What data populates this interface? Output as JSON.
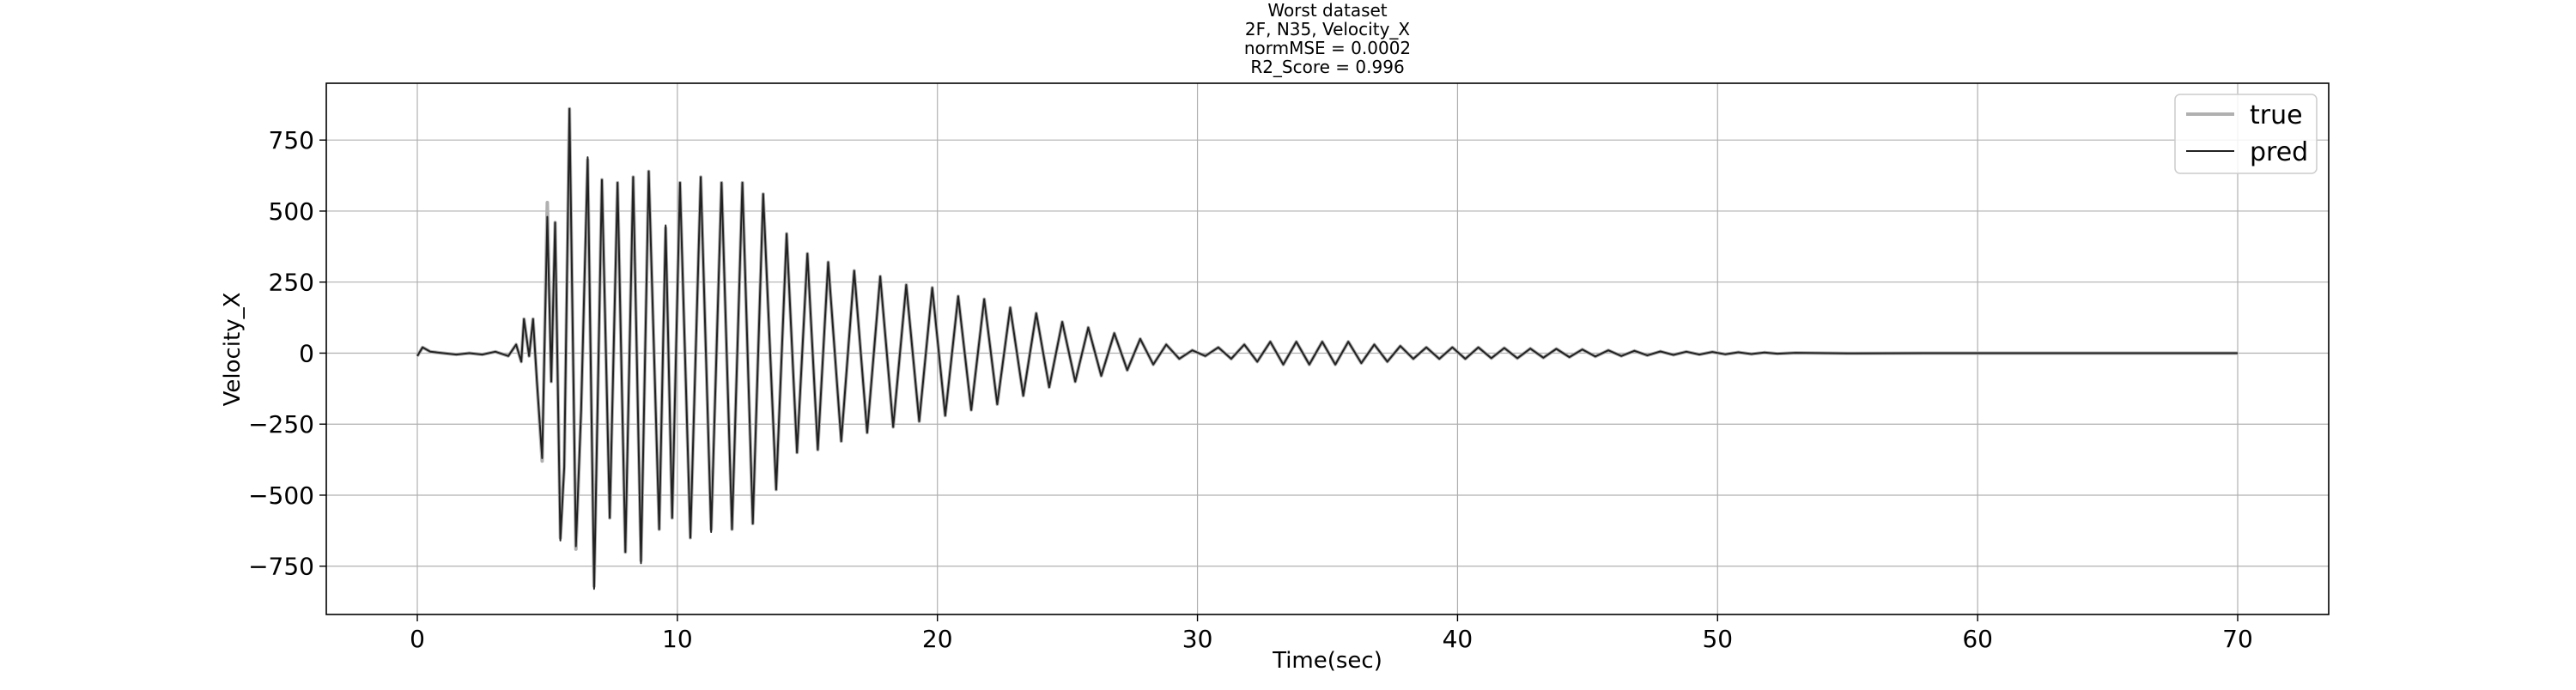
{
  "chart_data": {
    "type": "line",
    "title_lines": [
      "Worst dataset",
      "2F, N35, Velocity_X",
      "normMSE = 0.0002",
      "R2_Score = 0.996"
    ],
    "xlabel": "Time(sec)",
    "ylabel": "Velocity_X",
    "xlim": [
      -3.5,
      73.5
    ],
    "ylim": [
      -920,
      950
    ],
    "xticks": [
      0,
      10,
      20,
      30,
      40,
      50,
      60,
      70
    ],
    "yticks": [
      -750,
      -500,
      -250,
      0,
      250,
      500,
      750
    ],
    "grid": true,
    "legend_position": "top-right",
    "series": [
      {
        "name": "true",
        "color": "#b0b0b0",
        "points": [
          [
            0,
            -10
          ],
          [
            0.2,
            20
          ],
          [
            0.5,
            5
          ],
          [
            1,
            0
          ],
          [
            1.5,
            -5
          ],
          [
            2,
            0
          ],
          [
            2.5,
            -5
          ],
          [
            3,
            5
          ],
          [
            3.5,
            -10
          ],
          [
            3.8,
            30
          ],
          [
            4.0,
            -30
          ],
          [
            4.1,
            120
          ],
          [
            4.3,
            -10
          ],
          [
            4.45,
            120
          ],
          [
            4.6,
            -100
          ],
          [
            4.8,
            -380
          ],
          [
            5.0,
            530
          ],
          [
            5.15,
            -100
          ],
          [
            5.3,
            460
          ],
          [
            5.5,
            -650
          ],
          [
            5.65,
            -400
          ],
          [
            5.85,
            860
          ],
          [
            6.1,
            -690
          ],
          [
            6.3,
            -200
          ],
          [
            6.55,
            680
          ],
          [
            6.8,
            -820
          ],
          [
            7.1,
            610
          ],
          [
            7.4,
            -580
          ],
          [
            7.7,
            600
          ],
          [
            8.0,
            -700
          ],
          [
            8.3,
            620
          ],
          [
            8.6,
            -730
          ],
          [
            8.9,
            640
          ],
          [
            9.3,
            -620
          ],
          [
            9.55,
            440
          ],
          [
            9.8,
            -580
          ],
          [
            10.1,
            600
          ],
          [
            10.5,
            -650
          ],
          [
            10.9,
            620
          ],
          [
            11.3,
            -620
          ],
          [
            11.7,
            600
          ],
          [
            12.1,
            -620
          ],
          [
            12.5,
            600
          ],
          [
            12.9,
            -600
          ],
          [
            13.3,
            560
          ],
          [
            13.8,
            -480
          ],
          [
            14.2,
            420
          ],
          [
            14.6,
            -350
          ],
          [
            15.0,
            350
          ],
          [
            15.4,
            -340
          ],
          [
            15.8,
            320
          ],
          [
            16.3,
            -310
          ],
          [
            16.8,
            290
          ],
          [
            17.3,
            -280
          ],
          [
            17.8,
            270
          ],
          [
            18.3,
            -260
          ],
          [
            18.8,
            240
          ],
          [
            19.3,
            -240
          ],
          [
            19.8,
            230
          ],
          [
            20.3,
            -220
          ],
          [
            20.8,
            200
          ],
          [
            21.3,
            -200
          ],
          [
            21.8,
            190
          ],
          [
            22.3,
            -180
          ],
          [
            22.8,
            160
          ],
          [
            23.3,
            -150
          ],
          [
            23.8,
            140
          ],
          [
            24.3,
            -120
          ],
          [
            24.8,
            110
          ],
          [
            25.3,
            -100
          ],
          [
            25.8,
            90
          ],
          [
            26.3,
            -80
          ],
          [
            26.8,
            70
          ],
          [
            27.3,
            -60
          ],
          [
            27.8,
            50
          ],
          [
            28.3,
            -40
          ],
          [
            28.8,
            30
          ],
          [
            29.3,
            -20
          ],
          [
            29.8,
            10
          ],
          [
            30.3,
            -10
          ],
          [
            30.8,
            20
          ],
          [
            31.3,
            -20
          ],
          [
            31.8,
            30
          ],
          [
            32.3,
            -30
          ],
          [
            32.8,
            40
          ],
          [
            33.3,
            -40
          ],
          [
            33.8,
            40
          ],
          [
            34.3,
            -40
          ],
          [
            34.8,
            40
          ],
          [
            35.3,
            -40
          ],
          [
            35.8,
            40
          ],
          [
            36.3,
            -35
          ],
          [
            36.8,
            30
          ],
          [
            37.3,
            -30
          ],
          [
            37.8,
            25
          ],
          [
            38.3,
            -20
          ],
          [
            38.8,
            20
          ],
          [
            39.3,
            -20
          ],
          [
            39.8,
            20
          ],
          [
            40.3,
            -20
          ],
          [
            40.8,
            20
          ],
          [
            41.3,
            -18
          ],
          [
            41.8,
            18
          ],
          [
            42.3,
            -18
          ],
          [
            42.8,
            16
          ],
          [
            43.3,
            -16
          ],
          [
            43.8,
            15
          ],
          [
            44.3,
            -14
          ],
          [
            44.8,
            13
          ],
          [
            45.3,
            -12
          ],
          [
            45.8,
            10
          ],
          [
            46.3,
            -10
          ],
          [
            46.8,
            8
          ],
          [
            47.3,
            -8
          ],
          [
            47.8,
            6
          ],
          [
            48.3,
            -6
          ],
          [
            48.8,
            5
          ],
          [
            49.3,
            -5
          ],
          [
            49.8,
            4
          ],
          [
            50.3,
            -4
          ],
          [
            50.8,
            3
          ],
          [
            51.3,
            -3
          ],
          [
            51.8,
            2
          ],
          [
            52.3,
            -2
          ],
          [
            53,
            1
          ],
          [
            55,
            -1
          ],
          [
            58,
            0
          ],
          [
            62,
            0
          ],
          [
            66,
            0
          ],
          [
            70,
            0
          ]
        ]
      },
      {
        "name": "pred",
        "color": "#222222",
        "points": [
          [
            0,
            -10
          ],
          [
            0.2,
            20
          ],
          [
            0.5,
            5
          ],
          [
            1,
            0
          ],
          [
            1.5,
            -5
          ],
          [
            2,
            0
          ],
          [
            2.5,
            -5
          ],
          [
            3,
            5
          ],
          [
            3.5,
            -10
          ],
          [
            3.8,
            30
          ],
          [
            4.0,
            -30
          ],
          [
            4.1,
            120
          ],
          [
            4.3,
            -10
          ],
          [
            4.45,
            120
          ],
          [
            4.6,
            -100
          ],
          [
            4.8,
            -370
          ],
          [
            5.0,
            480
          ],
          [
            5.15,
            -100
          ],
          [
            5.3,
            460
          ],
          [
            5.5,
            -660
          ],
          [
            5.65,
            -400
          ],
          [
            5.85,
            860
          ],
          [
            6.1,
            -680
          ],
          [
            6.3,
            -200
          ],
          [
            6.55,
            690
          ],
          [
            6.8,
            -830
          ],
          [
            7.1,
            610
          ],
          [
            7.4,
            -580
          ],
          [
            7.7,
            600
          ],
          [
            8.0,
            -700
          ],
          [
            8.3,
            620
          ],
          [
            8.6,
            -740
          ],
          [
            8.9,
            640
          ],
          [
            9.3,
            -620
          ],
          [
            9.55,
            450
          ],
          [
            9.8,
            -580
          ],
          [
            10.1,
            600
          ],
          [
            10.5,
            -650
          ],
          [
            10.9,
            620
          ],
          [
            11.3,
            -630
          ],
          [
            11.7,
            600
          ],
          [
            12.1,
            -620
          ],
          [
            12.5,
            600
          ],
          [
            12.9,
            -600
          ],
          [
            13.3,
            560
          ],
          [
            13.8,
            -480
          ],
          [
            14.2,
            420
          ],
          [
            14.6,
            -350
          ],
          [
            15.0,
            350
          ],
          [
            15.4,
            -340
          ],
          [
            15.8,
            320
          ],
          [
            16.3,
            -310
          ],
          [
            16.8,
            290
          ],
          [
            17.3,
            -280
          ],
          [
            17.8,
            270
          ],
          [
            18.3,
            -260
          ],
          [
            18.8,
            240
          ],
          [
            19.3,
            -240
          ],
          [
            19.8,
            230
          ],
          [
            20.3,
            -220
          ],
          [
            20.8,
            200
          ],
          [
            21.3,
            -200
          ],
          [
            21.8,
            190
          ],
          [
            22.3,
            -180
          ],
          [
            22.8,
            160
          ],
          [
            23.3,
            -150
          ],
          [
            23.8,
            140
          ],
          [
            24.3,
            -120
          ],
          [
            24.8,
            110
          ],
          [
            25.3,
            -100
          ],
          [
            25.8,
            90
          ],
          [
            26.3,
            -80
          ],
          [
            26.8,
            70
          ],
          [
            27.3,
            -60
          ],
          [
            27.8,
            50
          ],
          [
            28.3,
            -40
          ],
          [
            28.8,
            30
          ],
          [
            29.3,
            -20
          ],
          [
            29.8,
            10
          ],
          [
            30.3,
            -10
          ],
          [
            30.8,
            20
          ],
          [
            31.3,
            -20
          ],
          [
            31.8,
            30
          ],
          [
            32.3,
            -30
          ],
          [
            32.8,
            40
          ],
          [
            33.3,
            -40
          ],
          [
            33.8,
            40
          ],
          [
            34.3,
            -40
          ],
          [
            34.8,
            40
          ],
          [
            35.3,
            -40
          ],
          [
            35.8,
            40
          ],
          [
            36.3,
            -35
          ],
          [
            36.8,
            30
          ],
          [
            37.3,
            -30
          ],
          [
            37.8,
            25
          ],
          [
            38.3,
            -20
          ],
          [
            38.8,
            20
          ],
          [
            39.3,
            -20
          ],
          [
            39.8,
            20
          ],
          [
            40.3,
            -20
          ],
          [
            40.8,
            20
          ],
          [
            41.3,
            -18
          ],
          [
            41.8,
            18
          ],
          [
            42.3,
            -18
          ],
          [
            42.8,
            16
          ],
          [
            43.3,
            -16
          ],
          [
            43.8,
            15
          ],
          [
            44.3,
            -14
          ],
          [
            44.8,
            13
          ],
          [
            45.3,
            -12
          ],
          [
            45.8,
            10
          ],
          [
            46.3,
            -10
          ],
          [
            46.8,
            8
          ],
          [
            47.3,
            -8
          ],
          [
            47.8,
            6
          ],
          [
            48.3,
            -6
          ],
          [
            48.8,
            5
          ],
          [
            49.3,
            -5
          ],
          [
            49.8,
            4
          ],
          [
            50.3,
            -4
          ],
          [
            50.8,
            3
          ],
          [
            51.3,
            -3
          ],
          [
            51.8,
            2
          ],
          [
            52.3,
            -2
          ],
          [
            53,
            1
          ],
          [
            55,
            -1
          ],
          [
            58,
            0
          ],
          [
            62,
            0
          ],
          [
            66,
            0
          ],
          [
            70,
            0
          ]
        ]
      }
    ]
  }
}
